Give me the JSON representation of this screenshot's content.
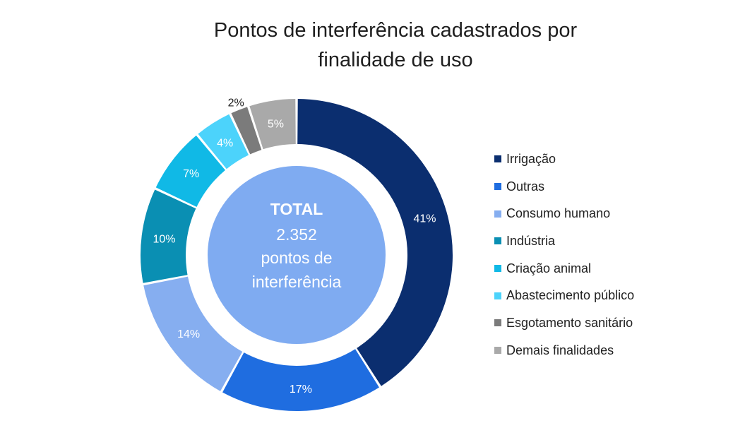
{
  "chart_data": {
    "type": "pie",
    "title": "Pontos de interferência cadastrados por finalidade de uso",
    "title_lines": [
      "Pontos de interferência cadastrados por",
      "finalidade de uso"
    ],
    "center": {
      "heading": "TOTAL",
      "lines": [
        "2.352",
        "pontos de",
        "interferência"
      ]
    },
    "legend_position": "right",
    "slices": [
      {
        "name": "Irrigação",
        "value": 41,
        "label": "41%",
        "color": "#0b2e6f",
        "label_color": "#ffffff"
      },
      {
        "name": "Outras",
        "value": 17,
        "label": "17%",
        "color": "#1f6de0",
        "label_color": "#ffffff"
      },
      {
        "name": "Consumo humano",
        "value": 14,
        "label": "14%",
        "color": "#86aef0",
        "label_color": "#ffffff"
      },
      {
        "name": "Indústria",
        "value": 10,
        "label": "10%",
        "color": "#0a8fb3",
        "label_color": "#ffffff"
      },
      {
        "name": "Criação animal",
        "value": 7,
        "label": "7%",
        "color": "#10b9e6",
        "label_color": "#ffffff"
      },
      {
        "name": "Abastecimento público",
        "value": 4,
        "label": "4%",
        "color": "#4cd3fb",
        "label_color": "#ffffff"
      },
      {
        "name": "Esgotamento sanitário",
        "value": 2,
        "label": "2%",
        "color": "#7b7b7b",
        "label_color": "#1f1f1f"
      },
      {
        "name": "Demais finalidades",
        "value": 5,
        "label": "5%",
        "color": "#a9a9a9",
        "label_color": "#ffffff"
      }
    ],
    "center_circle_color": "#7fabf1"
  }
}
